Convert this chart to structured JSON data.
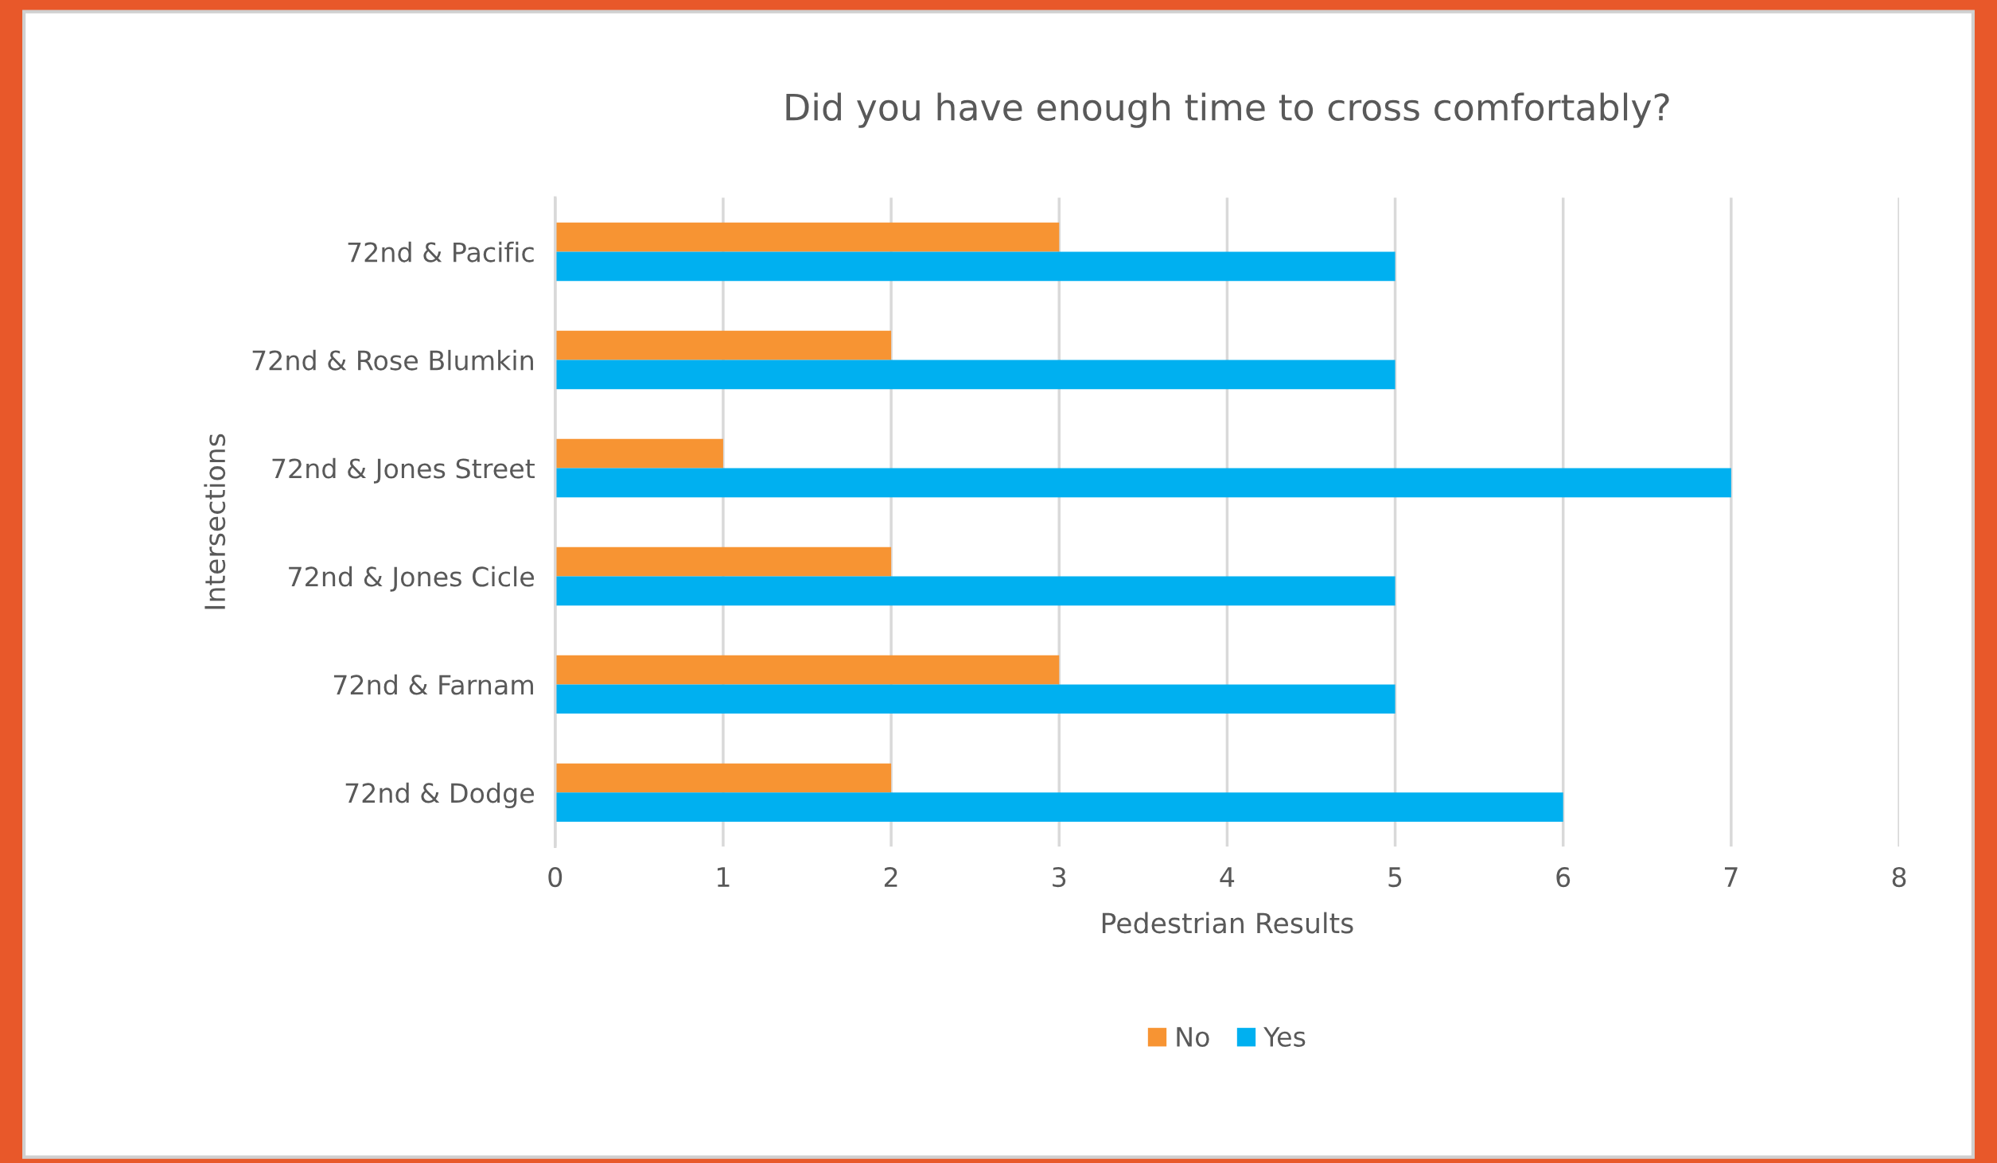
{
  "chart_data": {
    "type": "bar",
    "orientation": "horizontal",
    "title": "Did you have enough time to cross comfortably?",
    "xlabel": "Pedestrian Results",
    "ylabel": "Intersections",
    "categories": [
      "72nd & Pacific",
      "72nd & Rose Blumkin",
      "72nd & Jones Street",
      "72nd & Jones Cicle",
      "72nd & Farnam",
      "72nd & Dodge"
    ],
    "series": [
      {
        "name": "No",
        "color": "#f79433",
        "values": [
          3,
          2,
          1,
          2,
          3,
          2
        ]
      },
      {
        "name": "Yes",
        "color": "#00b0f0",
        "values": [
          5,
          5,
          7,
          5,
          5,
          6
        ]
      }
    ],
    "xlim": [
      0,
      8
    ],
    "xticks": [
      0,
      1,
      2,
      3,
      4,
      5,
      6,
      7,
      8
    ],
    "grid": "x",
    "legend": "bottom"
  }
}
